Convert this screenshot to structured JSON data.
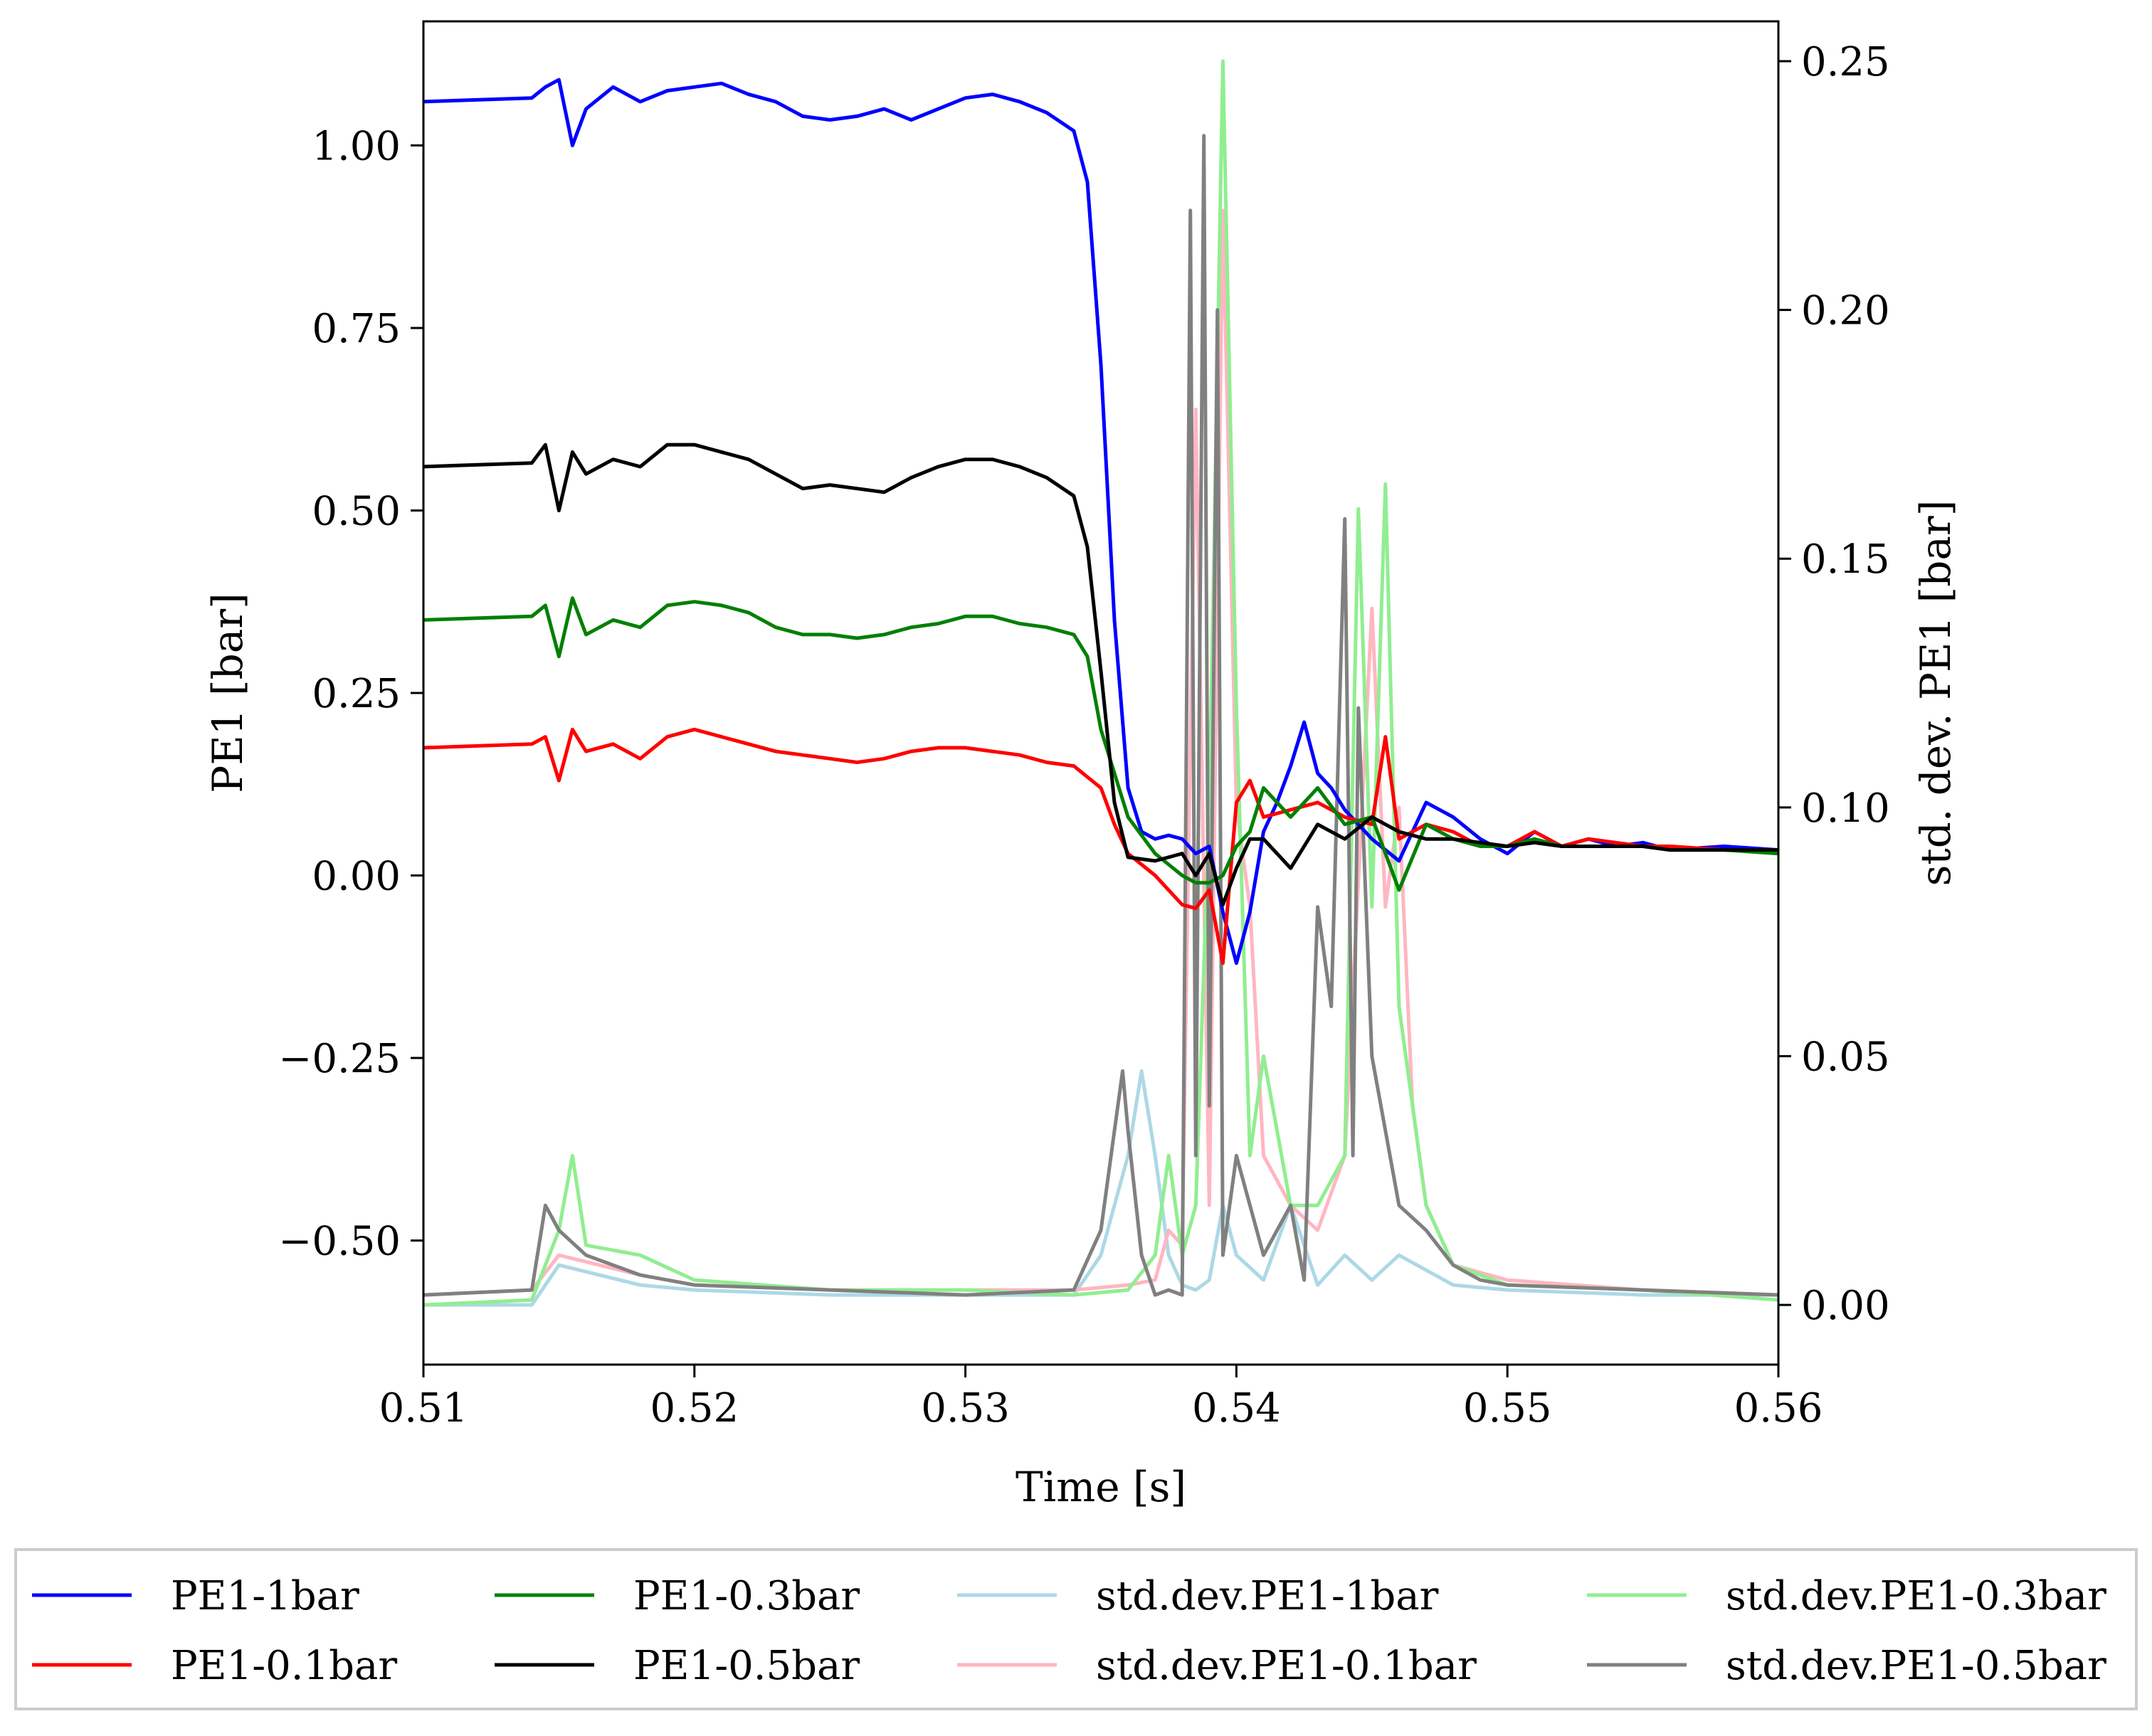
{
  "chart_data": {
    "type": "line",
    "xlabel": "Time [s]",
    "ylabel": "PE1 [bar]",
    "y2label": "std. dev. PE1 [bar]",
    "xlim": [
      0.51,
      0.56
    ],
    "ylim": [
      -0.67,
      1.17
    ],
    "y2lim": [
      -0.012,
      0.258
    ],
    "xticks": [
      0.51,
      0.52,
      0.53,
      0.54,
      0.55,
      0.56
    ],
    "xtick_labels": [
      "0.51",
      "0.52",
      "0.53",
      "0.54",
      "0.55",
      "0.56"
    ],
    "yticks": [
      -0.5,
      -0.25,
      0.0,
      0.25,
      0.5,
      0.75,
      1.0
    ],
    "ytick_labels": [
      "−0.50",
      "−0.25",
      "0.00",
      "0.25",
      "0.50",
      "0.75",
      "1.00"
    ],
    "y2ticks": [
      0.0,
      0.05,
      0.1,
      0.15,
      0.2,
      0.25
    ],
    "y2tick_labels": [
      "0.00",
      "0.05",
      "0.10",
      "0.15",
      "0.20",
      "0.25"
    ],
    "legend_position": "bottom, outside, 4 columns",
    "series": [
      {
        "name": "PE1-1bar",
        "axis": "left",
        "color": "#0000ff",
        "x": [
          0.51,
          0.514,
          0.5145,
          0.515,
          0.5155,
          0.516,
          0.517,
          0.518,
          0.519,
          0.52,
          0.521,
          0.522,
          0.523,
          0.524,
          0.525,
          0.526,
          0.527,
          0.528,
          0.529,
          0.53,
          0.531,
          0.532,
          0.533,
          0.534,
          0.5345,
          0.535,
          0.5355,
          0.536,
          0.5365,
          0.537,
          0.5375,
          0.538,
          0.5385,
          0.539,
          0.5395,
          0.54,
          0.5405,
          0.541,
          0.5415,
          0.542,
          0.5425,
          0.543,
          0.5435,
          0.544,
          0.545,
          0.546,
          0.547,
          0.548,
          0.549,
          0.55,
          0.551,
          0.552,
          0.553,
          0.554,
          0.555,
          0.556,
          0.558,
          0.56
        ],
        "y": [
          1.06,
          1.065,
          1.08,
          1.09,
          1.0,
          1.05,
          1.08,
          1.06,
          1.075,
          1.08,
          1.085,
          1.07,
          1.06,
          1.04,
          1.035,
          1.04,
          1.05,
          1.035,
          1.05,
          1.065,
          1.07,
          1.06,
          1.045,
          1.02,
          0.95,
          0.7,
          0.35,
          0.12,
          0.06,
          0.05,
          0.055,
          0.05,
          0.03,
          0.04,
          -0.05,
          -0.12,
          -0.05,
          0.06,
          0.1,
          0.15,
          0.21,
          0.14,
          0.12,
          0.09,
          0.05,
          0.02,
          0.1,
          0.08,
          0.05,
          0.03,
          0.06,
          0.04,
          0.05,
          0.04,
          0.045,
          0.035,
          0.04,
          0.035
        ]
      },
      {
        "name": "PE1-0.1bar",
        "axis": "left",
        "color": "#ff0000",
        "x": [
          0.51,
          0.514,
          0.5145,
          0.515,
          0.5155,
          0.516,
          0.517,
          0.518,
          0.519,
          0.52,
          0.521,
          0.522,
          0.523,
          0.524,
          0.525,
          0.526,
          0.527,
          0.528,
          0.529,
          0.53,
          0.531,
          0.532,
          0.533,
          0.534,
          0.535,
          0.5355,
          0.536,
          0.537,
          0.538,
          0.5385,
          0.539,
          0.5395,
          0.54,
          0.5405,
          0.541,
          0.542,
          0.543,
          0.544,
          0.545,
          0.5455,
          0.546,
          0.547,
          0.548,
          0.549,
          0.55,
          0.551,
          0.552,
          0.553,
          0.554,
          0.555,
          0.556,
          0.558,
          0.56
        ],
        "y": [
          0.175,
          0.18,
          0.19,
          0.13,
          0.2,
          0.17,
          0.18,
          0.16,
          0.19,
          0.2,
          0.19,
          0.18,
          0.17,
          0.165,
          0.16,
          0.155,
          0.16,
          0.17,
          0.175,
          0.175,
          0.17,
          0.165,
          0.155,
          0.15,
          0.12,
          0.07,
          0.03,
          0.0,
          -0.04,
          -0.045,
          -0.02,
          -0.12,
          0.1,
          0.13,
          0.08,
          0.09,
          0.1,
          0.08,
          0.07,
          0.19,
          0.05,
          0.07,
          0.06,
          0.04,
          0.04,
          0.06,
          0.04,
          0.05,
          0.045,
          0.04,
          0.04,
          0.035,
          0.035
        ]
      },
      {
        "name": "PE1-0.3bar",
        "axis": "left",
        "color": "#008000",
        "x": [
          0.51,
          0.514,
          0.5145,
          0.515,
          0.5155,
          0.516,
          0.517,
          0.518,
          0.519,
          0.52,
          0.521,
          0.522,
          0.523,
          0.524,
          0.525,
          0.526,
          0.527,
          0.528,
          0.529,
          0.53,
          0.531,
          0.532,
          0.533,
          0.534,
          0.5345,
          0.535,
          0.5355,
          0.536,
          0.537,
          0.538,
          0.5385,
          0.539,
          0.5395,
          0.54,
          0.5405,
          0.541,
          0.542,
          0.543,
          0.544,
          0.545,
          0.546,
          0.547,
          0.548,
          0.549,
          0.55,
          0.551,
          0.552,
          0.553,
          0.554,
          0.555,
          0.556,
          0.558,
          0.56
        ],
        "y": [
          0.35,
          0.355,
          0.37,
          0.3,
          0.38,
          0.33,
          0.35,
          0.34,
          0.37,
          0.375,
          0.37,
          0.36,
          0.34,
          0.33,
          0.33,
          0.325,
          0.33,
          0.34,
          0.345,
          0.355,
          0.355,
          0.345,
          0.34,
          0.33,
          0.3,
          0.2,
          0.14,
          0.08,
          0.03,
          0.0,
          -0.01,
          -0.01,
          0.0,
          0.04,
          0.06,
          0.12,
          0.08,
          0.12,
          0.07,
          0.08,
          -0.02,
          0.07,
          0.05,
          0.04,
          0.04,
          0.05,
          0.04,
          0.04,
          0.04,
          0.04,
          0.035,
          0.035,
          0.03
        ]
      },
      {
        "name": "PE1-0.5bar",
        "axis": "left",
        "color": "#000000",
        "x": [
          0.51,
          0.514,
          0.5145,
          0.515,
          0.5155,
          0.516,
          0.517,
          0.518,
          0.519,
          0.52,
          0.521,
          0.522,
          0.523,
          0.524,
          0.525,
          0.526,
          0.527,
          0.528,
          0.529,
          0.53,
          0.531,
          0.532,
          0.533,
          0.534,
          0.5345,
          0.535,
          0.5355,
          0.536,
          0.537,
          0.538,
          0.5385,
          0.539,
          0.5395,
          0.54,
          0.5405,
          0.541,
          0.542,
          0.543,
          0.544,
          0.545,
          0.546,
          0.547,
          0.548,
          0.549,
          0.55,
          0.551,
          0.552,
          0.553,
          0.554,
          0.555,
          0.556,
          0.558,
          0.56
        ],
        "y": [
          0.56,
          0.565,
          0.59,
          0.5,
          0.58,
          0.55,
          0.57,
          0.56,
          0.59,
          0.59,
          0.58,
          0.57,
          0.55,
          0.53,
          0.535,
          0.53,
          0.525,
          0.545,
          0.56,
          0.57,
          0.57,
          0.56,
          0.545,
          0.52,
          0.45,
          0.28,
          0.1,
          0.025,
          0.02,
          0.03,
          0.0,
          0.03,
          -0.04,
          0.01,
          0.05,
          0.05,
          0.01,
          0.07,
          0.05,
          0.08,
          0.06,
          0.05,
          0.05,
          0.045,
          0.04,
          0.045,
          0.04,
          0.04,
          0.04,
          0.04,
          0.035,
          0.035,
          0.035
        ]
      },
      {
        "name": "std.dev.PE1-1bar",
        "axis": "right",
        "color": "#add8e6",
        "x": [
          0.51,
          0.514,
          0.515,
          0.518,
          0.52,
          0.525,
          0.53,
          0.534,
          0.535,
          0.5355,
          0.536,
          0.5365,
          0.537,
          0.5375,
          0.538,
          0.5385,
          0.539,
          0.5395,
          0.54,
          0.541,
          0.542,
          0.543,
          0.544,
          0.545,
          0.546,
          0.548,
          0.55,
          0.555,
          0.56
        ],
        "y": [
          0.0,
          0.0,
          0.008,
          0.004,
          0.003,
          0.002,
          0.002,
          0.002,
          0.01,
          0.02,
          0.03,
          0.047,
          0.03,
          0.01,
          0.004,
          0.003,
          0.005,
          0.02,
          0.01,
          0.005,
          0.02,
          0.004,
          0.01,
          0.005,
          0.01,
          0.004,
          0.003,
          0.002,
          0.002
        ]
      },
      {
        "name": "std.dev.PE1-0.1bar",
        "axis": "right",
        "color": "#ffb6c1",
        "x": [
          0.51,
          0.514,
          0.515,
          0.518,
          0.52,
          0.525,
          0.53,
          0.534,
          0.536,
          0.537,
          0.5375,
          0.538,
          0.5385,
          0.539,
          0.5395,
          0.54,
          0.5405,
          0.541,
          0.542,
          0.543,
          0.544,
          0.545,
          0.5455,
          0.546,
          0.5465,
          0.547,
          0.548,
          0.55,
          0.555,
          0.56
        ],
        "y": [
          0.002,
          0.003,
          0.01,
          0.006,
          0.004,
          0.003,
          0.003,
          0.003,
          0.004,
          0.005,
          0.015,
          0.012,
          0.18,
          0.02,
          0.22,
          0.1,
          0.08,
          0.03,
          0.02,
          0.015,
          0.03,
          0.14,
          0.08,
          0.1,
          0.04,
          0.02,
          0.008,
          0.005,
          0.003,
          0.002
        ]
      },
      {
        "name": "std.dev.PE1-0.3bar",
        "axis": "right",
        "color": "#90ee90",
        "x": [
          0.51,
          0.514,
          0.515,
          0.5155,
          0.516,
          0.518,
          0.52,
          0.525,
          0.53,
          0.534,
          0.536,
          0.537,
          0.5375,
          0.538,
          0.5385,
          0.539,
          0.5395,
          0.54,
          0.5405,
          0.541,
          0.542,
          0.543,
          0.544,
          0.5445,
          0.545,
          0.5455,
          0.546,
          0.547,
          0.548,
          0.55,
          0.555,
          0.56
        ],
        "y": [
          0.0,
          0.001,
          0.015,
          0.03,
          0.012,
          0.01,
          0.005,
          0.003,
          0.003,
          0.002,
          0.003,
          0.01,
          0.03,
          0.01,
          0.02,
          0.1,
          0.25,
          0.12,
          0.03,
          0.05,
          0.02,
          0.02,
          0.03,
          0.16,
          0.08,
          0.165,
          0.06,
          0.02,
          0.008,
          0.004,
          0.003,
          0.001
        ]
      },
      {
        "name": "std.dev.PE1-0.5bar",
        "axis": "right",
        "color": "#808080",
        "x": [
          0.51,
          0.514,
          0.5145,
          0.515,
          0.516,
          0.518,
          0.52,
          0.525,
          0.53,
          0.534,
          0.535,
          0.5355,
          0.5358,
          0.536,
          0.5365,
          0.537,
          0.5375,
          0.538,
          0.5383,
          0.5385,
          0.5388,
          0.539,
          0.5393,
          0.5395,
          0.54,
          0.541,
          0.542,
          0.5425,
          0.543,
          0.5435,
          0.544,
          0.5443,
          0.5445,
          0.545,
          0.546,
          0.547,
          0.548,
          0.549,
          0.55,
          0.555,
          0.56
        ],
        "y": [
          0.002,
          0.003,
          0.02,
          0.015,
          0.01,
          0.006,
          0.004,
          0.003,
          0.002,
          0.003,
          0.015,
          0.035,
          0.047,
          0.035,
          0.01,
          0.002,
          0.003,
          0.002,
          0.22,
          0.03,
          0.235,
          0.04,
          0.2,
          0.01,
          0.03,
          0.01,
          0.02,
          0.005,
          0.08,
          0.06,
          0.158,
          0.03,
          0.12,
          0.05,
          0.02,
          0.015,
          0.008,
          0.005,
          0.004,
          0.003,
          0.002
        ]
      }
    ]
  }
}
